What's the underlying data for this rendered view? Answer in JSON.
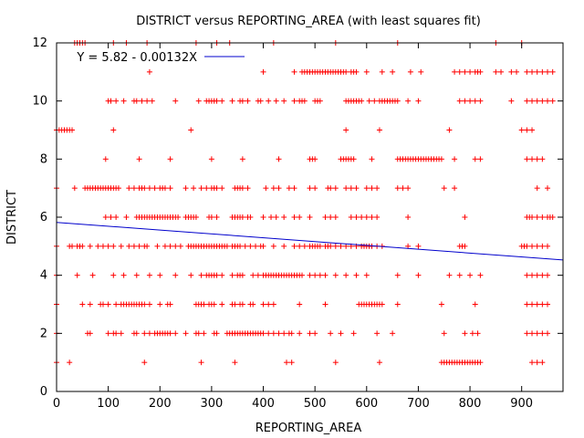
{
  "chart_data": {
    "type": "scatter",
    "title": "DISTRICT versus REPORTING_AREA (with least squares fit)",
    "xlabel": "REPORTING_AREA",
    "ylabel": "DISTRICT",
    "xlim": [
      0,
      980
    ],
    "ylim": [
      0,
      12
    ],
    "xticks": [
      0,
      100,
      200,
      300,
      400,
      500,
      600,
      700,
      800,
      900
    ],
    "yticks": [
      0,
      2,
      4,
      6,
      8,
      10,
      12
    ],
    "grid": false,
    "legend_position": "top-left",
    "colors": {
      "points": "#ff0000",
      "fit": "#0000cc",
      "axis": "#000000"
    },
    "fit": {
      "label": "Y = 5.82 - 0.00132X",
      "intercept": 5.82,
      "slope": -0.00132
    },
    "series": [
      {
        "marker": "plus",
        "clusters": [
          {
            "y": 12,
            "x": [
              35,
              40,
              45,
              50,
              55,
              110,
              135,
              175,
              270,
              310,
              335,
              420,
              540,
              660,
              850,
              900
            ]
          },
          {
            "y": 11,
            "x": [
              180,
              400,
              460,
              475,
              480,
              485,
              490,
              495,
              500,
              505,
              510,
              515,
              520,
              525,
              530,
              535,
              540,
              545,
              550,
              555,
              560,
              570,
              575,
              580,
              600,
              630,
              650,
              685,
              705,
              770,
              780,
              790,
              800,
              810,
              815,
              820,
              850,
              860,
              880,
              890,
              910,
              920,
              930,
              940,
              950,
              960
            ]
          },
          {
            "y": 10,
            "x": [
              100,
              105,
              115,
              130,
              150,
              155,
              165,
              175,
              185,
              230,
              275,
              290,
              295,
              300,
              305,
              310,
              320,
              340,
              355,
              360,
              370,
              390,
              395,
              410,
              425,
              440,
              460,
              470,
              475,
              480,
              500,
              505,
              510,
              560,
              565,
              570,
              575,
              580,
              585,
              590,
              605,
              615,
              625,
              630,
              635,
              640,
              645,
              650,
              655,
              660,
              680,
              700,
              780,
              790,
              800,
              810,
              820,
              880,
              910,
              920,
              930,
              940,
              950,
              960
            ]
          },
          {
            "y": 9,
            "x": [
              0,
              5,
              10,
              15,
              20,
              25,
              30,
              110,
              260,
              560,
              625,
              760,
              900,
              910,
              920
            ]
          },
          {
            "y": 8,
            "x": [
              95,
              160,
              220,
              300,
              360,
              430,
              490,
              495,
              500,
              550,
              555,
              560,
              565,
              570,
              575,
              610,
              660,
              665,
              670,
              675,
              680,
              685,
              690,
              695,
              700,
              705,
              710,
              715,
              720,
              725,
              730,
              735,
              740,
              745,
              770,
              810,
              820,
              910,
              920,
              930,
              940
            ]
          },
          {
            "y": 7,
            "x": [
              0,
              35,
              55,
              60,
              65,
              70,
              75,
              80,
              85,
              90,
              95,
              100,
              105,
              110,
              115,
              120,
              140,
              150,
              160,
              165,
              170,
              180,
              190,
              200,
              205,
              210,
              220,
              250,
              265,
              280,
              290,
              300,
              305,
              310,
              320,
              345,
              350,
              355,
              360,
              370,
              405,
              420,
              430,
              450,
              460,
              490,
              500,
              525,
              530,
              540,
              560,
              570,
              580,
              600,
              610,
              620,
              660,
              670,
              680,
              750,
              770,
              930,
              950
            ]
          },
          {
            "y": 6,
            "x": [
              95,
              105,
              115,
              135,
              155,
              160,
              165,
              170,
              175,
              180,
              185,
              190,
              195,
              200,
              205,
              210,
              215,
              220,
              225,
              230,
              235,
              250,
              255,
              260,
              265,
              270,
              295,
              300,
              310,
              340,
              345,
              350,
              355,
              360,
              370,
              375,
              400,
              415,
              425,
              440,
              460,
              470,
              490,
              520,
              530,
              540,
              570,
              580,
              590,
              600,
              610,
              620,
              680,
              790,
              910,
              915,
              920,
              930,
              940,
              950,
              955,
              960
            ]
          },
          {
            "y": 5,
            "x": [
              0,
              25,
              30,
              40,
              45,
              50,
              65,
              80,
              90,
              100,
              110,
              125,
              140,
              150,
              160,
              170,
              175,
              195,
              210,
              220,
              230,
              240,
              255,
              260,
              265,
              270,
              275,
              280,
              285,
              290,
              295,
              300,
              305,
              310,
              315,
              320,
              325,
              330,
              340,
              345,
              350,
              355,
              365,
              375,
              385,
              395,
              400,
              420,
              440,
              460,
              470,
              480,
              490,
              495,
              500,
              505,
              510,
              520,
              525,
              530,
              540,
              550,
              560,
              570,
              580,
              590,
              595,
              600,
              605,
              610,
              620,
              630,
              680,
              700,
              780,
              785,
              790,
              900,
              905,
              910,
              920,
              930,
              940,
              950
            ]
          },
          {
            "y": 4,
            "x": [
              0,
              40,
              70,
              110,
              130,
              155,
              180,
              200,
              230,
              260,
              280,
              290,
              295,
              300,
              305,
              310,
              320,
              340,
              350,
              355,
              360,
              380,
              390,
              400,
              405,
              410,
              415,
              420,
              425,
              430,
              435,
              440,
              445,
              450,
              455,
              460,
              465,
              470,
              475,
              490,
              500,
              510,
              520,
              540,
              560,
              580,
              600,
              660,
              700,
              760,
              780,
              800,
              820,
              910,
              920,
              930,
              940,
              950
            ]
          },
          {
            "y": 3,
            "x": [
              0,
              50,
              65,
              85,
              90,
              100,
              115,
              125,
              130,
              135,
              140,
              145,
              150,
              155,
              160,
              165,
              170,
              180,
              200,
              215,
              220,
              270,
              275,
              280,
              285,
              295,
              300,
              305,
              320,
              340,
              345,
              355,
              360,
              375,
              380,
              400,
              410,
              420,
              470,
              520,
              585,
              590,
              595,
              600,
              605,
              610,
              615,
              620,
              625,
              630,
              660,
              745,
              810,
              910,
              920,
              930,
              940,
              950
            ]
          },
          {
            "y": 2,
            "x": [
              0,
              60,
              65,
              100,
              110,
              115,
              125,
              150,
              155,
              170,
              180,
              190,
              195,
              200,
              205,
              210,
              215,
              220,
              230,
              250,
              270,
              275,
              285,
              305,
              310,
              330,
              335,
              340,
              345,
              350,
              355,
              360,
              365,
              370,
              375,
              380,
              385,
              390,
              395,
              400,
              410,
              420,
              430,
              440,
              450,
              455,
              470,
              490,
              500,
              530,
              550,
              575,
              620,
              650,
              750,
              790,
              805,
              815,
              910,
              920,
              930,
              940,
              950
            ]
          },
          {
            "y": 1,
            "x": [
              0,
              25,
              170,
              280,
              345,
              445,
              455,
              540,
              625,
              745,
              750,
              755,
              760,
              765,
              770,
              775,
              780,
              785,
              790,
              795,
              800,
              805,
              810,
              815,
              820,
              920,
              930,
              940
            ]
          }
        ]
      }
    ]
  }
}
